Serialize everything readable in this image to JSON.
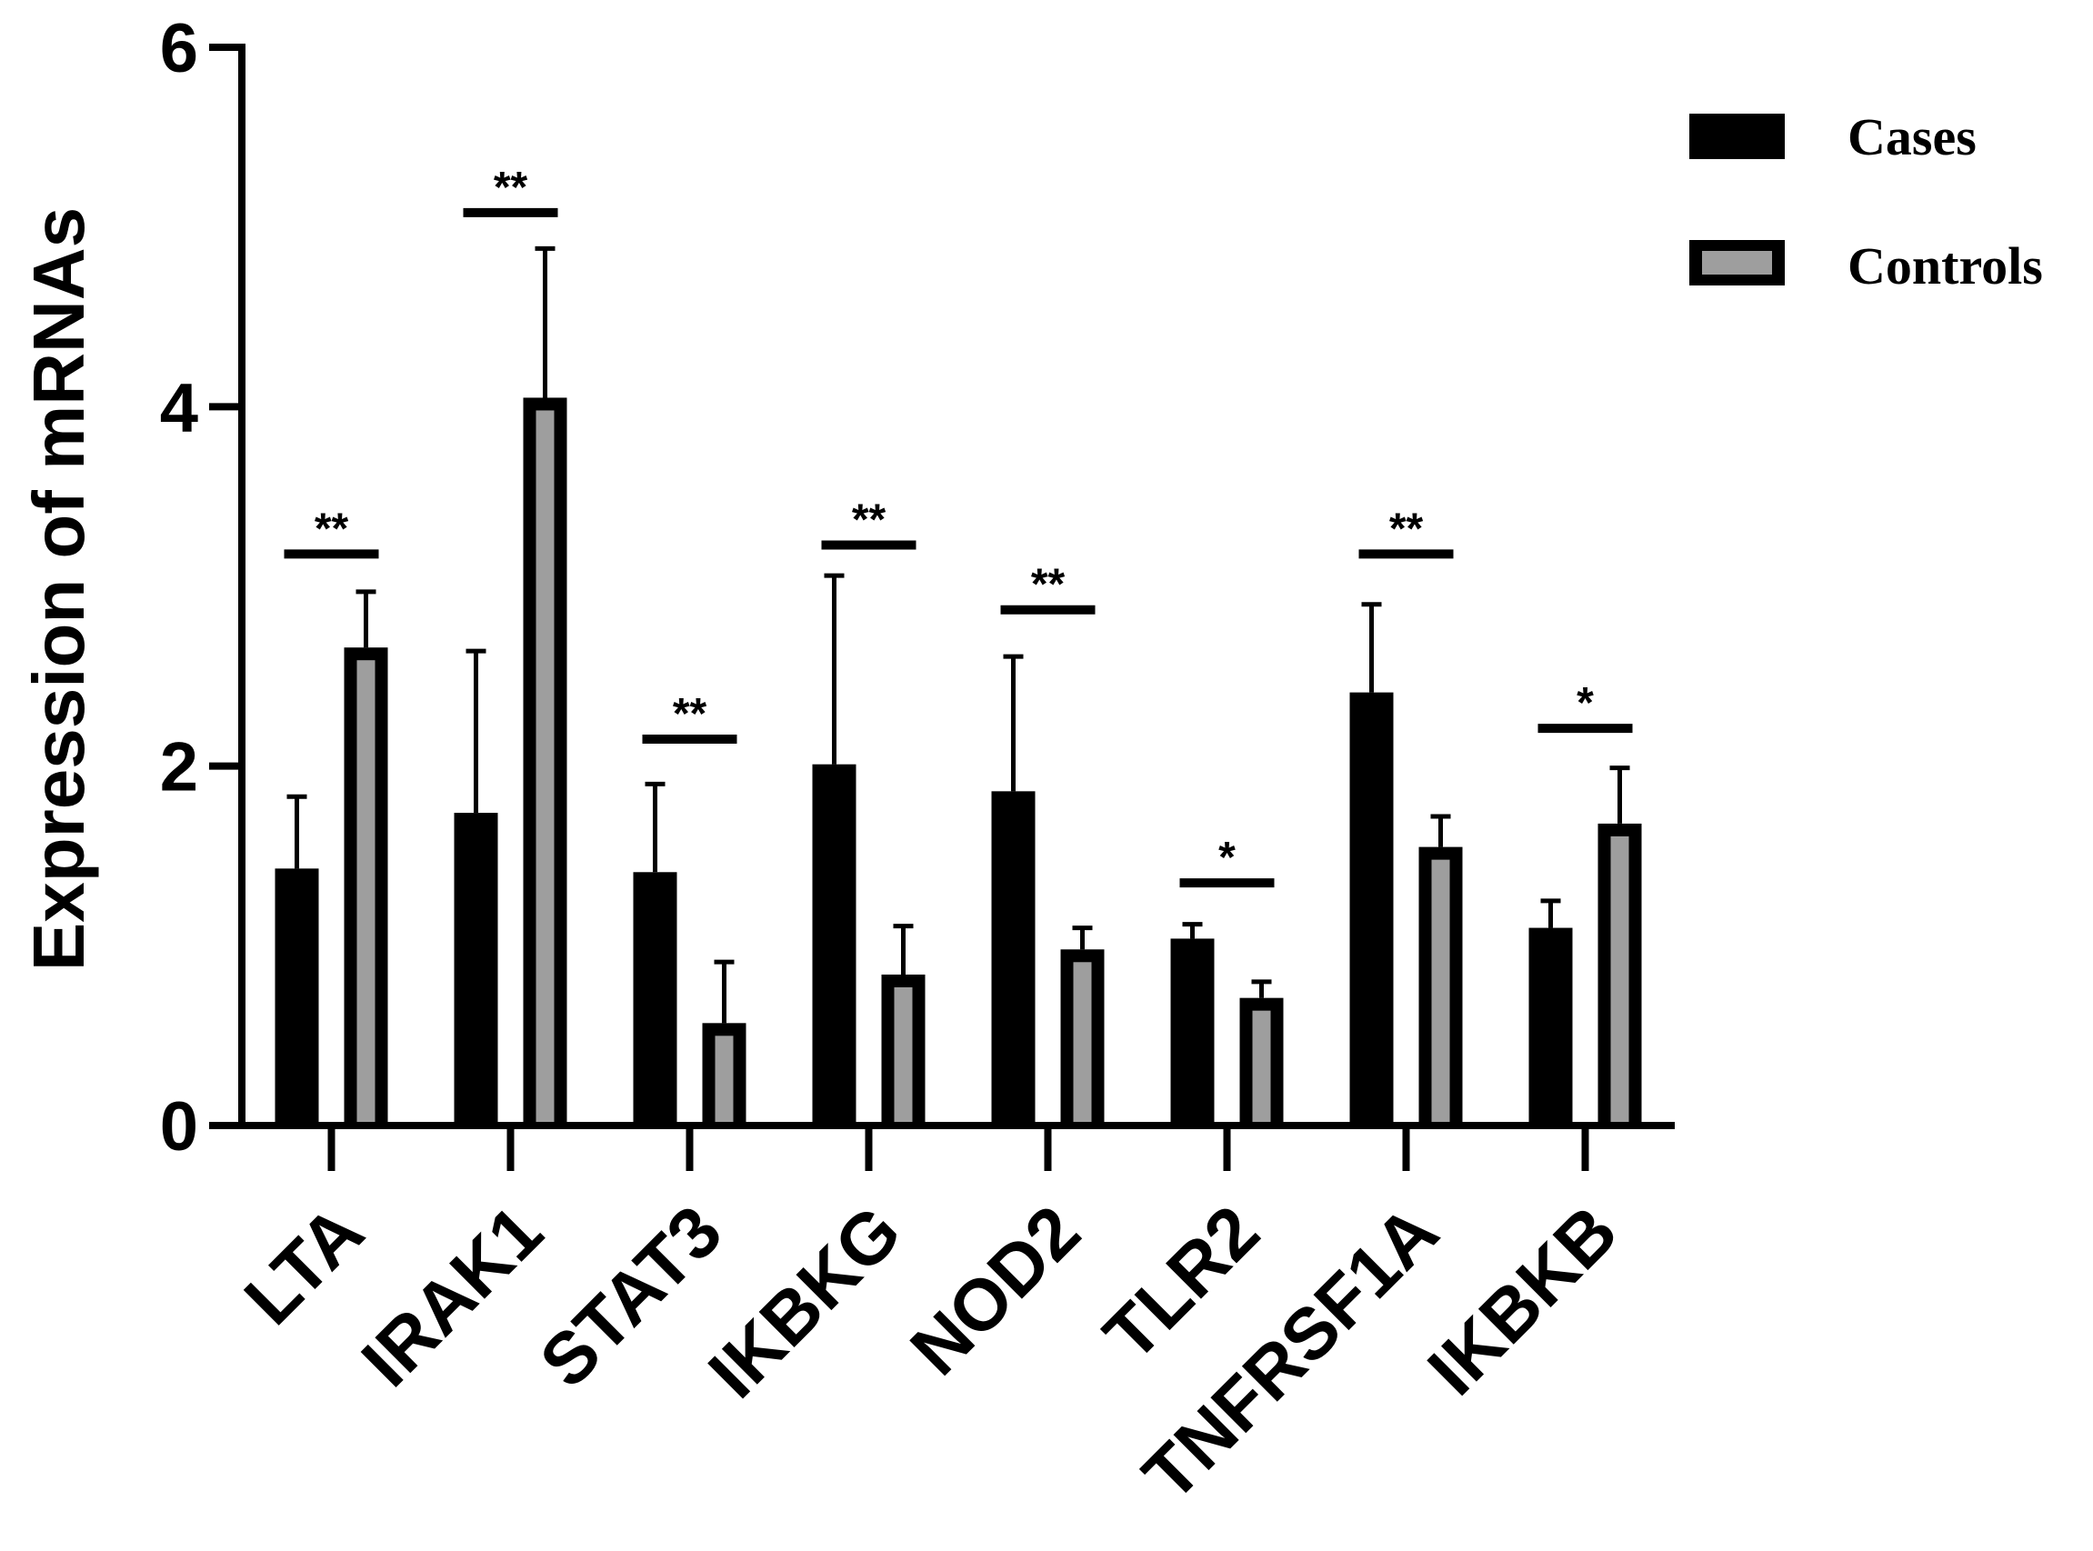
{
  "chart_data": {
    "type": "bar",
    "title": "",
    "xlabel": "",
    "ylabel": "Expression of mRNAs",
    "ylim": [
      0,
      6
    ],
    "yticks": [
      "0",
      "2",
      "4",
      "6"
    ],
    "grid": false,
    "legend_position": "top-right",
    "categories": [
      "LTA",
      "IRAK1",
      "STAT3",
      "IKBKG",
      "NOD2",
      "TLR2",
      "TNFRSF1A",
      "IKBKB"
    ],
    "series": [
      {
        "name": "Cases",
        "color": "#000000",
        "values": [
          1.43,
          1.74,
          1.41,
          2.01,
          1.86,
          1.04,
          2.41,
          1.1
        ],
        "error": [
          0.4,
          0.9,
          0.49,
          1.05,
          0.75,
          0.08,
          0.49,
          0.15
        ]
      },
      {
        "name": "Controls",
        "color": "#9e9e9e",
        "values": [
          2.66,
          4.05,
          0.57,
          0.84,
          0.98,
          0.71,
          1.55,
          1.68
        ],
        "error": [
          0.31,
          0.83,
          0.34,
          0.27,
          0.12,
          0.09,
          0.17,
          0.31
        ]
      }
    ],
    "significance": [
      {
        "category": "LTA",
        "label": "**",
        "y": 3.18
      },
      {
        "category": "IRAK1",
        "label": "**",
        "y": 5.08
      },
      {
        "category": "STAT3",
        "label": "**",
        "y": 2.15
      },
      {
        "category": "IKBKG",
        "label": "**",
        "y": 3.23
      },
      {
        "category": "NOD2",
        "label": "**",
        "y": 2.87
      },
      {
        "category": "TLR2",
        "label": "*",
        "y": 1.35
      },
      {
        "category": "TNFRSF1A",
        "label": "**",
        "y": 3.18
      },
      {
        "category": "IKBKB",
        "label": "*",
        "y": 2.21
      }
    ]
  }
}
